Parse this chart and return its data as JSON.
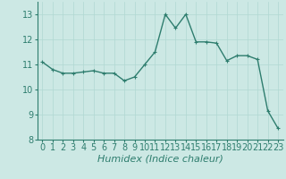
{
  "x": [
    0,
    1,
    2,
    3,
    4,
    5,
    6,
    7,
    8,
    9,
    10,
    11,
    12,
    13,
    14,
    15,
    16,
    17,
    18,
    19,
    20,
    21,
    22,
    23
  ],
  "y": [
    11.1,
    10.8,
    10.65,
    10.65,
    10.7,
    10.75,
    10.65,
    10.65,
    10.35,
    10.5,
    11.0,
    11.5,
    13.0,
    12.45,
    13.0,
    11.9,
    11.9,
    11.85,
    11.15,
    11.35,
    11.35,
    11.2,
    9.15,
    8.45
  ],
  "line_color": "#2e7d6e",
  "marker": "+",
  "marker_size": 3,
  "bg_color": "#cce8e4",
  "grid_color": "#b0d8d2",
  "xlabel": "Humidex (Indice chaleur)",
  "xlabel_fontsize": 8,
  "tick_fontsize": 7,
  "ylim": [
    8,
    13.5
  ],
  "yticks": [
    8,
    9,
    10,
    11,
    12,
    13
  ],
  "xticks": [
    0,
    1,
    2,
    3,
    4,
    5,
    6,
    7,
    8,
    9,
    10,
    11,
    12,
    13,
    14,
    15,
    16,
    17,
    18,
    19,
    20,
    21,
    22,
    23
  ],
  "line_width": 1.0,
  "xlim": [
    -0.5,
    23.5
  ]
}
